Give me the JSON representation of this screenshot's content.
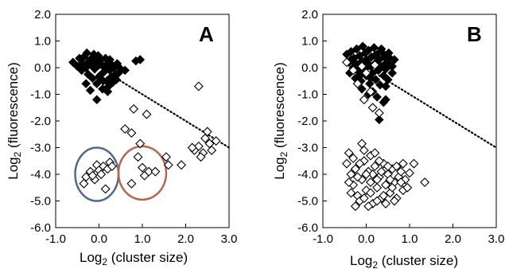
{
  "chart_data": [
    {
      "type": "scatter",
      "panel_label": "A",
      "xlabel": "Log2 (cluster size)",
      "ylabel": "Log2 (fluorescence)",
      "xlim": [
        -1.0,
        3.0
      ],
      "ylim": [
        -6.0,
        2.0
      ],
      "x_ticks": [
        "-1.0",
        "0.0",
        "1.0",
        "2.0",
        "3.0"
      ],
      "y_ticks": [
        "2.0",
        "1.0",
        "0.0",
        "-1.0",
        "-2.0",
        "-3.0",
        "-4.0",
        "-5.0",
        "-6.0"
      ],
      "grid": false,
      "series": [
        {
          "marker": "filled-diamond",
          "color": "#000000",
          "points": [
            [
              -0.6,
              0.2
            ],
            [
              -0.5,
              0.05
            ],
            [
              -0.45,
              0.35
            ],
            [
              -0.4,
              -0.1
            ],
            [
              -0.35,
              0.4
            ],
            [
              -0.3,
              0.0
            ],
            [
              -0.28,
              0.55
            ],
            [
              -0.25,
              -0.25
            ],
            [
              -0.2,
              0.3
            ],
            [
              -0.18,
              0.1
            ],
            [
              -0.15,
              -0.4
            ],
            [
              -0.12,
              0.5
            ],
            [
              -0.1,
              -0.05
            ],
            [
              -0.08,
              0.25
            ],
            [
              -0.05,
              -0.6
            ],
            [
              -0.02,
              0.45
            ],
            [
              0.0,
              0.1
            ],
            [
              0.02,
              -0.3
            ],
            [
              0.05,
              0.3
            ],
            [
              0.08,
              -0.8
            ],
            [
              0.1,
              0.05
            ],
            [
              0.12,
              -0.15
            ],
            [
              0.15,
              0.35
            ],
            [
              0.18,
              -0.5
            ],
            [
              0.2,
              0.15
            ],
            [
              0.22,
              -0.7
            ],
            [
              0.25,
              -0.1
            ],
            [
              0.28,
              -0.35
            ],
            [
              0.3,
              0.1
            ],
            [
              0.32,
              -0.55
            ],
            [
              0.35,
              0.0
            ],
            [
              0.38,
              -0.25
            ],
            [
              0.42,
              0.15
            ],
            [
              0.45,
              -0.2
            ],
            [
              0.5,
              -0.05
            ],
            [
              -0.2,
              -0.85
            ],
            [
              -0.05,
              -1.2
            ],
            [
              0.2,
              -0.9
            ],
            [
              -0.3,
              -0.6
            ],
            [
              0.1,
              -0.5
            ],
            [
              0.25,
              0.3
            ],
            [
              0.0,
              -0.35
            ],
            [
              -0.15,
              0.05
            ],
            [
              0.4,
              -0.45
            ],
            [
              0.6,
              -0.1
            ],
            [
              0.85,
              0.25
            ],
            [
              0.95,
              0.3
            ],
            [
              -0.4,
              0.15
            ],
            [
              -0.25,
              0.2
            ],
            [
              0.15,
              -0.05
            ]
          ]
        },
        {
          "marker": "open-diamond",
          "color": "#000000",
          "points": [
            [
              0.8,
              -1.55
            ],
            [
              1.1,
              -1.75
            ],
            [
              2.3,
              -0.7
            ],
            [
              0.6,
              -2.3
            ],
            [
              0.75,
              -2.45
            ],
            [
              -0.35,
              -4.35
            ],
            [
              -0.3,
              -4.1
            ],
            [
              -0.2,
              -3.9
            ],
            [
              -0.1,
              -4.2
            ],
            [
              -0.05,
              -3.65
            ],
            [
              0.0,
              -3.85
            ],
            [
              0.05,
              -4.0
            ],
            [
              0.1,
              -3.7
            ],
            [
              0.15,
              -4.55
            ],
            [
              0.2,
              -3.8
            ],
            [
              0.25,
              -3.55
            ],
            [
              -0.15,
              -4.05
            ],
            [
              0.3,
              -3.7
            ],
            [
              0.75,
              -4.35
            ],
            [
              0.9,
              -3.35
            ],
            [
              1.0,
              -3.75
            ],
            [
              1.05,
              -4.05
            ],
            [
              1.15,
              -3.9
            ],
            [
              1.3,
              -3.9
            ],
            [
              1.55,
              -3.35
            ],
            [
              1.6,
              -3.65
            ],
            [
              1.9,
              -3.65
            ],
            [
              2.2,
              -3.1
            ],
            [
              2.3,
              -2.95
            ],
            [
              2.4,
              -3.2
            ],
            [
              2.45,
              -2.65
            ],
            [
              2.55,
              -2.85
            ],
            [
              2.6,
              -3.1
            ],
            [
              2.7,
              -2.75
            ],
            [
              2.35,
              -3.35
            ],
            [
              2.5,
              -2.4
            ],
            [
              2.15,
              -3.0
            ],
            [
              0.95,
              -2.85
            ]
          ]
        }
      ],
      "trend_line": {
        "style": "dotted",
        "from": [
          0.4,
          -0.4
        ],
        "to": [
          3.0,
          -3.0
        ]
      },
      "circles": [
        {
          "color": "#4e6a8f",
          "center": [
            -0.05,
            -4.0
          ],
          "radius_x": 0.5,
          "radius_y": 1.0
        },
        {
          "color": "#b5664e",
          "center": [
            1.0,
            -3.95
          ],
          "radius_x": 0.55,
          "radius_y": 1.0
        }
      ]
    },
    {
      "type": "scatter",
      "panel_label": "B",
      "xlabel": "Log2 (cluster size)",
      "ylabel": "Log2 (fluorescence)",
      "xlim": [
        -1.0,
        3.0
      ],
      "ylim": [
        -6.0,
        2.0
      ],
      "x_ticks": [
        "-1.0",
        "0.0",
        "1.0",
        "2.0",
        "3.0"
      ],
      "y_ticks": [
        "2.0",
        "1.0",
        "0.0",
        "-1.0",
        "-2.0",
        "-3.0",
        "-4.0",
        "-5.0",
        "-6.0"
      ],
      "grid": false,
      "series": [
        {
          "marker": "filled-diamond",
          "color": "#000000",
          "points": [
            [
              -0.45,
              0.5
            ],
            [
              -0.4,
              0.2
            ],
            [
              -0.38,
              -0.2
            ],
            [
              -0.35,
              0.6
            ],
            [
              -0.3,
              0.0
            ],
            [
              -0.28,
              0.35
            ],
            [
              -0.25,
              -0.4
            ],
            [
              -0.22,
              0.7
            ],
            [
              -0.2,
              0.1
            ],
            [
              -0.18,
              -0.15
            ],
            [
              -0.15,
              0.45
            ],
            [
              -0.12,
              -0.5
            ],
            [
              -0.1,
              0.25
            ],
            [
              -0.08,
              0.8
            ],
            [
              -0.05,
              -0.05
            ],
            [
              -0.02,
              0.55
            ],
            [
              0.0,
              -0.3
            ],
            [
              0.02,
              0.2
            ],
            [
              0.05,
              0.65
            ],
            [
              0.08,
              -0.6
            ],
            [
              0.1,
              0.05
            ],
            [
              0.12,
              0.4
            ],
            [
              0.15,
              -0.2
            ],
            [
              0.18,
              0.75
            ],
            [
              0.2,
              0.15
            ],
            [
              0.22,
              -0.45
            ],
            [
              0.25,
              0.5
            ],
            [
              0.28,
              -0.1
            ],
            [
              0.3,
              0.3
            ],
            [
              0.32,
              -0.65
            ],
            [
              0.35,
              0.6
            ],
            [
              0.38,
              0.05
            ],
            [
              0.4,
              -0.3
            ],
            [
              0.42,
              0.4
            ],
            [
              0.45,
              -0.05
            ],
            [
              0.48,
              0.2
            ],
            [
              0.5,
              -0.45
            ],
            [
              0.52,
              0.55
            ],
            [
              0.55,
              0.1
            ],
            [
              0.6,
              -0.2
            ],
            [
              0.65,
              0.3
            ],
            [
              0.15,
              -0.9
            ],
            [
              0.25,
              -1.1
            ],
            [
              0.4,
              -1.3
            ],
            [
              0.3,
              -1.95
            ],
            [
              0.45,
              -1.2
            ],
            [
              -0.1,
              -0.8
            ],
            [
              0.05,
              -1.0
            ],
            [
              0.35,
              0.7
            ],
            [
              -0.35,
              0.3
            ],
            [
              0.2,
              0.45
            ],
            [
              0.0,
              0.3
            ],
            [
              -0.15,
              -0.3
            ],
            [
              0.1,
              -0.4
            ],
            [
              0.3,
              0.1
            ],
            [
              0.55,
              0.35
            ],
            [
              -0.25,
              0.15
            ],
            [
              0.45,
              -0.7
            ],
            [
              0.6,
              0.05
            ],
            [
              0.0,
              0.0
            ]
          ]
        },
        {
          "marker": "open-diamond",
          "color": "#000000",
          "points": [
            [
              -0.45,
              0.2
            ],
            [
              -0.3,
              -0.1
            ],
            [
              -0.2,
              -0.6
            ],
            [
              0.0,
              -0.2
            ],
            [
              0.1,
              -0.9
            ],
            [
              -0.05,
              -1.2
            ],
            [
              0.15,
              -1.5
            ],
            [
              0.3,
              -1.7
            ],
            [
              0.2,
              0.1
            ],
            [
              -0.1,
              0.05
            ],
            [
              -0.45,
              -3.6
            ],
            [
              -0.4,
              -3.2
            ],
            [
              -0.35,
              -4.0
            ],
            [
              -0.3,
              -4.4
            ],
            [
              -0.25,
              -3.8
            ],
            [
              -0.2,
              -4.8
            ],
            [
              -0.15,
              -5.0
            ],
            [
              -0.1,
              -4.2
            ],
            [
              -0.05,
              -3.5
            ],
            [
              0.0,
              -4.6
            ],
            [
              0.05,
              -3.9
            ],
            [
              0.1,
              -4.3
            ],
            [
              0.15,
              -5.1
            ],
            [
              0.2,
              -3.7
            ],
            [
              0.25,
              -4.5
            ],
            [
              0.3,
              -4.1
            ],
            [
              0.35,
              -4.9
            ],
            [
              0.4,
              -3.6
            ],
            [
              0.45,
              -4.4
            ],
            [
              0.5,
              -4.0
            ],
            [
              0.55,
              -4.7
            ],
            [
              0.6,
              -3.8
            ],
            [
              0.65,
              -4.3
            ],
            [
              0.7,
              -4.9
            ],
            [
              0.75,
              -4.1
            ],
            [
              0.8,
              -3.9
            ],
            [
              0.85,
              -4.6
            ],
            [
              0.9,
              -4.2
            ],
            [
              1.0,
              -3.95
            ],
            [
              1.1,
              -3.6
            ],
            [
              1.35,
              -4.3
            ],
            [
              -0.1,
              -2.85
            ],
            [
              -0.05,
              -3.1
            ],
            [
              0.1,
              -3.3
            ],
            [
              0.2,
              -3.2
            ],
            [
              -0.35,
              -4.7
            ],
            [
              -0.25,
              -5.2
            ],
            [
              0.05,
              -5.2
            ],
            [
              0.25,
              -5.0
            ],
            [
              0.45,
              -5.1
            ],
            [
              -0.4,
              -4.3
            ],
            [
              0.3,
              -3.5
            ],
            [
              0.6,
              -4.5
            ],
            [
              0.15,
              -4.0
            ],
            [
              -0.15,
              -3.6
            ],
            [
              0.4,
              -4.8
            ],
            [
              0.7,
              -3.7
            ],
            [
              0.0,
              -4.0
            ],
            [
              0.25,
              -4.2
            ],
            [
              -0.3,
              -3.4
            ],
            [
              0.5,
              -3.7
            ],
            [
              0.95,
              -4.5
            ],
            [
              0.65,
              -5.0
            ],
            [
              -0.05,
              -4.9
            ],
            [
              0.35,
              -3.9
            ],
            [
              0.8,
              -4.3
            ],
            [
              -0.2,
              -4.1
            ],
            [
              0.1,
              -4.7
            ],
            [
              0.55,
              -4.2
            ],
            [
              0.85,
              -3.6
            ]
          ]
        }
      ],
      "trend_line": {
        "style": "dotted",
        "from": [
          0.3,
          -0.3
        ],
        "to": [
          3.0,
          -3.0
        ]
      }
    }
  ]
}
